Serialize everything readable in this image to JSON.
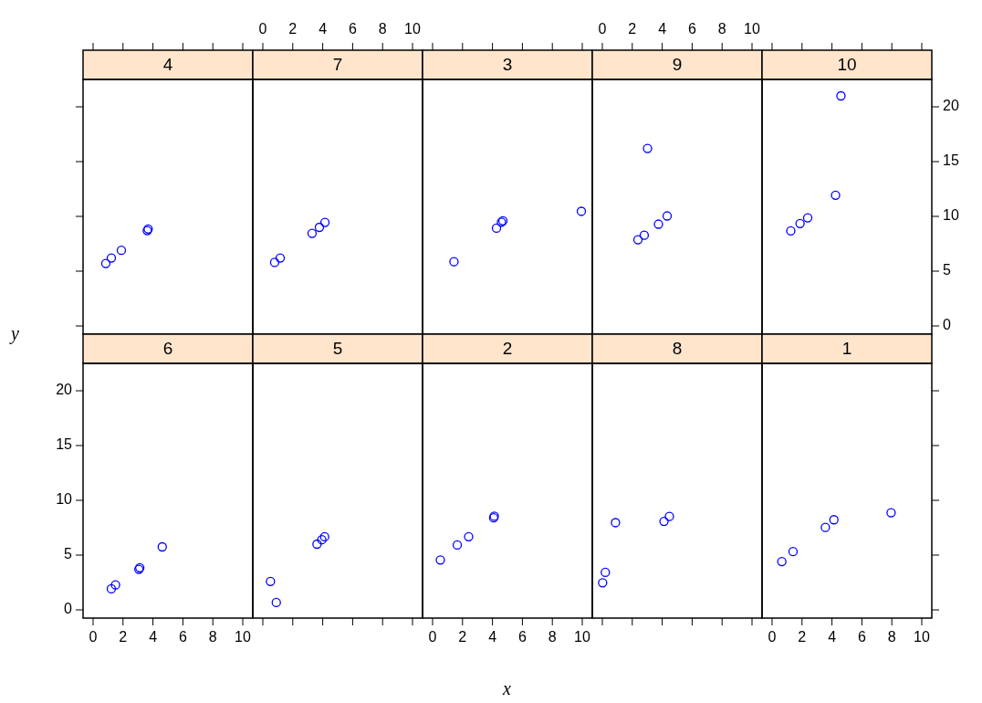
{
  "chart_data": [
    {
      "type": "scatter",
      "title": "4",
      "x": [
        0.85,
        1.22,
        1.89,
        3.62,
        3.68
      ],
      "values": [
        5.7,
        6.2,
        6.9,
        8.7,
        8.85
      ],
      "color": "#0000ff",
      "marker": "circle",
      "xlim": [
        -0.67,
        10.67
      ],
      "ylim": [
        -0.75,
        22.5
      ],
      "xticks": [
        0,
        2,
        4,
        6,
        8,
        10
      ],
      "yticks": [
        0,
        5,
        10,
        15,
        20
      ],
      "tick_labels": false
    },
    {
      "type": "scatter",
      "title": "7",
      "x": [
        0.79,
        1.16,
        3.29,
        3.78,
        4.15
      ],
      "values": [
        5.8,
        6.2,
        8.45,
        9.0,
        9.45
      ],
      "color": "#0000ff",
      "marker": "circle",
      "xlim": [
        -0.67,
        10.67
      ],
      "ylim": [
        -0.75,
        22.5
      ],
      "xticks": [
        0,
        2,
        4,
        6,
        8,
        10
      ],
      "yticks": [
        0,
        5,
        10,
        15,
        20
      ],
      "tick_labels": "x"
    },
    {
      "type": "scatter",
      "title": "3",
      "x": [
        1.43,
        4.27,
        4.6,
        4.7,
        9.94
      ],
      "values": [
        5.86,
        8.92,
        9.47,
        9.6,
        10.46
      ],
      "color": "#0000ff",
      "marker": "circle",
      "xlim": [
        -0.67,
        10.67
      ],
      "ylim": [
        -0.75,
        22.5
      ],
      "xticks": [
        0,
        2,
        4,
        6,
        8,
        10
      ],
      "yticks": [
        0,
        5,
        10,
        15,
        20
      ],
      "tick_labels": false
    },
    {
      "type": "scatter",
      "title": "9",
      "x": [
        2.38,
        2.8,
        3.02,
        3.75,
        4.33
      ],
      "values": [
        7.87,
        8.28,
        16.2,
        9.29,
        10.04
      ],
      "color": "#0000ff",
      "marker": "circle",
      "xlim": [
        -0.67,
        10.67
      ],
      "ylim": [
        -0.75,
        22.5
      ],
      "xticks": [
        0,
        2,
        4,
        6,
        8,
        10
      ],
      "yticks": [
        0,
        5,
        10,
        15,
        20
      ],
      "tick_labels": "x"
    },
    {
      "type": "scatter",
      "title": "10",
      "x": [
        1.25,
        1.87,
        2.38,
        4.24,
        4.6
      ],
      "values": [
        8.68,
        9.35,
        9.87,
        11.93,
        21.0
      ],
      "color": "#0000ff",
      "marker": "circle",
      "xlim": [
        -0.67,
        10.67
      ],
      "ylim": [
        -0.75,
        22.5
      ],
      "xticks": [
        0,
        2,
        4,
        6,
        8,
        10
      ],
      "yticks": [
        0,
        5,
        10,
        15,
        20
      ],
      "tick_labels": "y"
    },
    {
      "type": "scatter",
      "title": "6",
      "ylabel": "y",
      "x": [
        1.22,
        1.5,
        3.06,
        3.12,
        4.62
      ],
      "values": [
        1.92,
        2.28,
        3.7,
        3.85,
        5.75
      ],
      "color": "#0000ff",
      "marker": "circle",
      "xlim": [
        -0.67,
        10.67
      ],
      "ylim": [
        -0.75,
        22.5
      ],
      "xticks": [
        0,
        2,
        4,
        6,
        8,
        10
      ],
      "yticks": [
        0,
        5,
        10,
        15,
        20
      ]
    },
    {
      "type": "scatter",
      "title": "5",
      "x": [
        0.51,
        0.9,
        3.62,
        3.94,
        4.13
      ],
      "values": [
        2.6,
        0.67,
        6.0,
        6.4,
        6.67
      ],
      "color": "#0000ff",
      "marker": "circle",
      "xlim": [
        -0.67,
        10.67
      ],
      "ylim": [
        -0.75,
        22.5
      ],
      "xticks": [
        0,
        2,
        4,
        6,
        8,
        10
      ],
      "yticks": [
        0,
        5,
        10,
        15,
        20
      ],
      "tick_labels": false
    },
    {
      "type": "scatter",
      "title": "2",
      "xlabel": "x",
      "x": [
        0.52,
        1.65,
        2.41,
        4.08,
        4.12
      ],
      "values": [
        4.56,
        5.92,
        6.68,
        8.4,
        8.55
      ],
      "color": "#0000ff",
      "marker": "circle",
      "xlim": [
        -0.67,
        10.67
      ],
      "ylim": [
        -0.75,
        22.5
      ],
      "xticks": [
        0,
        2,
        4,
        6,
        8,
        10
      ],
      "yticks": [
        0,
        5,
        10,
        15,
        20
      ],
      "tick_labels": "x"
    },
    {
      "type": "scatter",
      "title": "8",
      "x": [
        0.02,
        0.2,
        0.88,
        4.12,
        4.48
      ],
      "values": [
        2.47,
        3.42,
        7.96,
        8.08,
        8.53
      ],
      "color": "#0000ff",
      "marker": "circle",
      "xlim": [
        -0.67,
        10.67
      ],
      "ylim": [
        -0.75,
        22.5
      ],
      "xticks": [
        0,
        2,
        4,
        6,
        8,
        10
      ],
      "yticks": [
        0,
        5,
        10,
        15,
        20
      ],
      "tick_labels": false
    },
    {
      "type": "scatter",
      "title": "1",
      "x": [
        0.65,
        1.4,
        3.56,
        4.13,
        7.95
      ],
      "values": [
        4.41,
        5.32,
        7.53,
        8.23,
        8.87
      ],
      "color": "#0000ff",
      "marker": "circle",
      "xlim": [
        -0.67,
        10.67
      ],
      "ylim": [
        -0.75,
        22.5
      ],
      "xticks": [
        0,
        2,
        4,
        6,
        8,
        10
      ],
      "yticks": [
        0,
        5,
        10,
        15,
        20
      ],
      "tick_labels": "x"
    }
  ]
}
